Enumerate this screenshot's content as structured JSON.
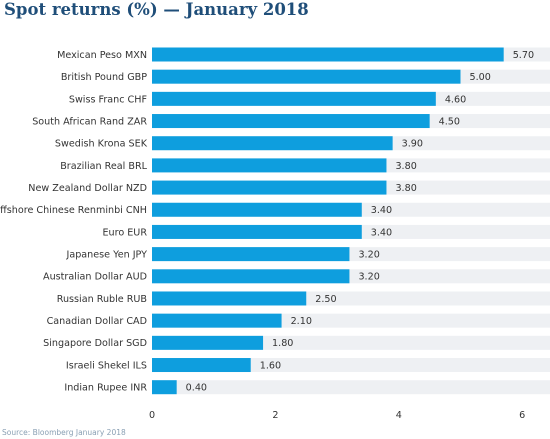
{
  "chart_data": {
    "type": "bar",
    "orientation": "horizontal",
    "title": "Spot returns (%) — January 2018",
    "categories": [
      "Mexican Peso  MXN",
      "British Pound  GBP",
      "Swiss Franc  CHF",
      "South African Rand  ZAR",
      "Swedish Krona  SEK",
      "Brazilian Real  BRL",
      "New Zealand Dollar  NZD",
      "Offshore Chinese Renminbi  CNH",
      "Euro  EUR",
      "Japanese Yen  JPY",
      "Australian Dollar  AUD",
      "Russian Ruble  RUB",
      "Canadian Dollar  CAD",
      "Singapore Dollar  SGD",
      "Israeli Shekel  ILS",
      "Indian Rupee  INR"
    ],
    "values": [
      5.7,
      5.0,
      4.6,
      4.5,
      3.9,
      3.8,
      3.8,
      3.4,
      3.4,
      3.2,
      3.2,
      2.5,
      2.1,
      1.8,
      1.6,
      0.4
    ],
    "value_labels": [
      "5.70",
      "5.00",
      "4.60",
      "4.50",
      "3.90",
      "3.80",
      "3.80",
      "3.40",
      "3.40",
      "3.20",
      "3.20",
      "2.50",
      "2.10",
      "1.80",
      "1.60",
      "0.40"
    ],
    "xlim": [
      0,
      6.5
    ],
    "xticks": [
      0,
      2,
      4,
      6
    ],
    "xtick_labels": [
      "0",
      "2",
      "4",
      "6"
    ],
    "xlabel": "",
    "ylabel": "",
    "grid": false,
    "legend": "none",
    "bar_color": "#0e9ede",
    "track_color": "#eef0f3",
    "source": "Source: Bloomberg January 2018"
  }
}
